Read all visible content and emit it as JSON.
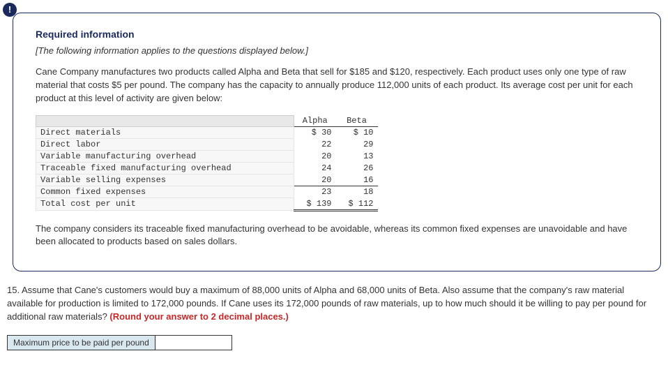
{
  "alertGlyph": "!",
  "heading": "Required information",
  "appliesNote": "[The following information applies to the questions displayed below.]",
  "intro": "Cane Company manufactures two products called Alpha and Beta that sell for $185 and $120, respectively. Each product uses only one type of raw material that costs $5 per pound. The company has the capacity to annually produce 112,000 units of each product. Its average cost per unit for each product at this level of activity are given below:",
  "table": {
    "colHeaders": [
      "Alpha",
      "Beta"
    ],
    "rows": [
      {
        "label": "Direct materials",
        "alpha": "$ 30",
        "beta": "$ 10"
      },
      {
        "label": "Direct labor",
        "alpha": "22",
        "beta": "29"
      },
      {
        "label": "Variable manufacturing overhead",
        "alpha": "20",
        "beta": "13"
      },
      {
        "label": "Traceable fixed manufacturing overhead",
        "alpha": "24",
        "beta": "26"
      },
      {
        "label": "Variable selling expenses",
        "alpha": "20",
        "beta": "16"
      },
      {
        "label": "Common fixed expenses",
        "alpha": "23",
        "beta": "18"
      }
    ],
    "totalRow": {
      "label": "Total cost per unit",
      "alpha": "$ 139",
      "beta": "$ 112"
    }
  },
  "avoidableNote": "The company considers its traceable fixed manufacturing overhead to be avoidable, whereas its common fixed expenses are unavoidable and have been allocated to products based on sales dollars.",
  "question": {
    "mainText": "15. Assume that Cane's customers would buy a maximum of 88,000 units of Alpha and 68,000 units of Beta. Also assume that the company's raw material available for production is limited to 172,000 pounds. If Cane uses its 172,000 pounds of raw materials, up to how much should it be willing to pay per pound for additional raw materials? ",
    "roundHint": "(Round your answer to 2 decimal places.)"
  },
  "answerLabel": "Maximum price to be paid per pound",
  "answerValue": ""
}
